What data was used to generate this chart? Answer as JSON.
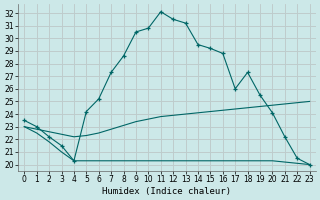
{
  "title": "",
  "xlabel": "Humidex (Indice chaleur)",
  "bg_color": "#cce8e8",
  "grid_color": "#b0c8c8",
  "line_color": "#006666",
  "xlim": [
    -0.5,
    23.5
  ],
  "ylim": [
    19.5,
    32.7
  ],
  "yticks": [
    20,
    21,
    22,
    23,
    24,
    25,
    26,
    27,
    28,
    29,
    30,
    31,
    32
  ],
  "xticks": [
    0,
    1,
    2,
    3,
    4,
    5,
    6,
    7,
    8,
    9,
    10,
    11,
    12,
    13,
    14,
    15,
    16,
    17,
    18,
    19,
    20,
    21,
    22,
    23
  ],
  "main_line_y": [
    23.5,
    23.0,
    22.2,
    21.5,
    20.3,
    24.2,
    25.2,
    27.3,
    28.6,
    30.5,
    30.8,
    32.1,
    31.5,
    31.2,
    29.5,
    29.2,
    28.8,
    26.0,
    27.3,
    25.5,
    24.1,
    22.2,
    20.5,
    20.0
  ],
  "upper_line_y": [
    23.0,
    22.8,
    22.6,
    22.4,
    22.2,
    22.3,
    22.5,
    22.8,
    23.1,
    23.4,
    23.6,
    23.8,
    23.9,
    24.0,
    24.1,
    24.2,
    24.3,
    24.4,
    24.5,
    24.6,
    24.7,
    24.8,
    24.9,
    25.0
  ],
  "lower_line_y": [
    23.0,
    22.5,
    21.8,
    21.0,
    20.3,
    20.3,
    20.3,
    20.3,
    20.3,
    20.3,
    20.3,
    20.3,
    20.3,
    20.3,
    20.3,
    20.3,
    20.3,
    20.3,
    20.3,
    20.3,
    20.3,
    20.2,
    20.1,
    20.0
  ]
}
